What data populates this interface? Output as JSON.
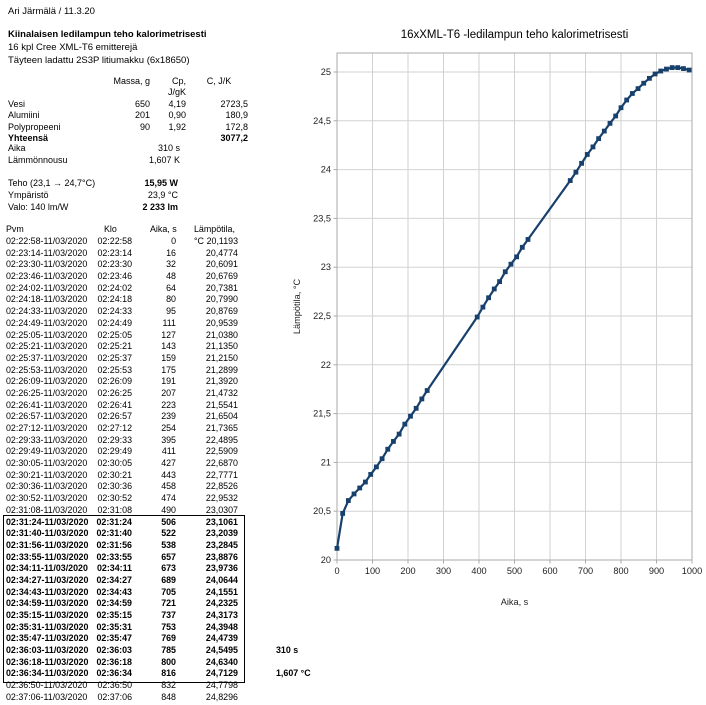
{
  "header": {
    "author_line": "Ari Järmälä / 11.3.20",
    "title": "Kiinalaisen ledilampun teho kalorimetrisesti",
    "subtitle1": "16 kpl Cree XML-T6 emitterejä",
    "subtitle2": "Täyteen ladattu 2S3P litiumakku (6x18650)"
  },
  "materials": {
    "col_headers": [
      "Massa, g",
      "Cp, J/gK",
      "C, J/K"
    ],
    "rows": [
      [
        "Vesi",
        "650",
        "4,19",
        "2723,5"
      ],
      [
        "Alumiini",
        "201",
        "0,90",
        "180,9"
      ],
      [
        "Polypropeeni",
        "90",
        "1,92",
        "172,8"
      ]
    ],
    "total_label": "Yhteensä",
    "total_value": "3077,2"
  },
  "stats": {
    "aika_label": "Aika",
    "aika_value": "310 s",
    "rise_label": "Lämmönnousu",
    "rise_value": "1,607 K",
    "teho_label": "Teho (23,1 → 24,7°C)",
    "teho_value": "15,95 W",
    "ymparisto_label": "Ympäristö",
    "ymparisto_value": "23,9 °C",
    "valo_label": "Valo: 140 lm/W",
    "valo_value": "2 233 lm"
  },
  "table": {
    "headers": [
      "Pvm",
      "Klo",
      "Aika, s",
      "Lämpötila, °C"
    ],
    "rows": [
      [
        "02:22:58-11/03/2020",
        "02:22:58",
        "0",
        "20,1193",
        0,
        ""
      ],
      [
        "02:23:14-11/03/2020",
        "02:23:14",
        "16",
        "20,4774",
        0,
        ""
      ],
      [
        "02:23:30-11/03/2020",
        "02:23:30",
        "32",
        "20,6091",
        0,
        ""
      ],
      [
        "02:23:46-11/03/2020",
        "02:23:46",
        "48",
        "20,6769",
        0,
        ""
      ],
      [
        "02:24:02-11/03/2020",
        "02:24:02",
        "64",
        "20,7381",
        0,
        ""
      ],
      [
        "02:24:18-11/03/2020",
        "02:24:18",
        "80",
        "20,7990",
        0,
        ""
      ],
      [
        "02:24:33-11/03/2020",
        "02:24:33",
        "95",
        "20,8769",
        0,
        ""
      ],
      [
        "02:24:49-11/03/2020",
        "02:24:49",
        "111",
        "20,9539",
        0,
        ""
      ],
      [
        "02:25:05-11/03/2020",
        "02:25:05",
        "127",
        "21,0380",
        0,
        ""
      ],
      [
        "02:25:21-11/03/2020",
        "02:25:21",
        "143",
        "21,1350",
        0,
        ""
      ],
      [
        "02:25:37-11/03/2020",
        "02:25:37",
        "159",
        "21,2150",
        0,
        ""
      ],
      [
        "02:25:53-11/03/2020",
        "02:25:53",
        "175",
        "21,2899",
        0,
        ""
      ],
      [
        "02:26:09-11/03/2020",
        "02:26:09",
        "191",
        "21,3920",
        0,
        ""
      ],
      [
        "02:26:25-11/03/2020",
        "02:26:25",
        "207",
        "21,4732",
        0,
        ""
      ],
      [
        "02:26:41-11/03/2020",
        "02:26:41",
        "223",
        "21,5541",
        0,
        ""
      ],
      [
        "02:26:57-11/03/2020",
        "02:26:57",
        "239",
        "21,6504",
        0,
        ""
      ],
      [
        "02:27:12-11/03/2020",
        "02:27:12",
        "254",
        "21,7365",
        0,
        ""
      ],
      [
        "02:29:33-11/03/2020",
        "02:29:33",
        "395",
        "22,4895",
        0,
        ""
      ],
      [
        "02:29:49-11/03/2020",
        "02:29:49",
        "411",
        "22,5909",
        0,
        ""
      ],
      [
        "02:30:05-11/03/2020",
        "02:30:05",
        "427",
        "22,6870",
        0,
        ""
      ],
      [
        "02:30:21-11/03/2020",
        "02:30:21",
        "443",
        "22,7771",
        0,
        ""
      ],
      [
        "02:30:36-11/03/2020",
        "02:30:36",
        "458",
        "22,8526",
        0,
        ""
      ],
      [
        "02:30:52-11/03/2020",
        "02:30:52",
        "474",
        "22,9532",
        0,
        ""
      ],
      [
        "02:31:08-11/03/2020",
        "02:31:08",
        "490",
        "23,0307",
        0,
        ""
      ],
      [
        "02:31:24-11/03/2020",
        "02:31:24",
        "506",
        "23,1061",
        1,
        ""
      ],
      [
        "02:31:40-11/03/2020",
        "02:31:40",
        "522",
        "23,2039",
        1,
        ""
      ],
      [
        "02:31:56-11/03/2020",
        "02:31:56",
        "538",
        "23,2845",
        1,
        ""
      ],
      [
        "02:33:55-11/03/2020",
        "02:33:55",
        "657",
        "23,8876",
        1,
        ""
      ],
      [
        "02:34:11-11/03/2020",
        "02:34:11",
        "673",
        "23,9736",
        1,
        ""
      ],
      [
        "02:34:27-11/03/2020",
        "02:34:27",
        "689",
        "24,0644",
        1,
        ""
      ],
      [
        "02:34:43-11/03/2020",
        "02:34:43",
        "705",
        "24,1551",
        1,
        ""
      ],
      [
        "02:34:59-11/03/2020",
        "02:34:59",
        "721",
        "24,2325",
        1,
        ""
      ],
      [
        "02:35:15-11/03/2020",
        "02:35:15",
        "737",
        "24,3173",
        1,
        ""
      ],
      [
        "02:35:31-11/03/2020",
        "02:35:31",
        "753",
        "24,3948",
        1,
        ""
      ],
      [
        "02:35:47-11/03/2020",
        "02:35:47",
        "769",
        "24,4739",
        1,
        ""
      ],
      [
        "02:36:03-11/03/2020",
        "02:36:03",
        "785",
        "24,5495",
        1,
        "310 s"
      ],
      [
        "02:36:18-11/03/2020",
        "02:36:18",
        "800",
        "24,6340",
        1,
        ""
      ],
      [
        "02:36:34-11/03/2020",
        "02:36:34",
        "816",
        "24,7129",
        1,
        "1,607 °C"
      ],
      [
        "02:36:50-11/03/2020",
        "02:36:50",
        "832",
        "24,7798",
        0,
        ""
      ],
      [
        "02:37:06-11/03/2020",
        "02:37:06",
        "848",
        "24,8296",
        0,
        ""
      ]
    ]
  },
  "chart_data": {
    "type": "line",
    "title": "16xXML-T6 -ledilampun teho kalorimetrisesti",
    "xlabel": "Aika, s",
    "ylabel": "Lämpötila, °C",
    "xlim": [
      0,
      1000
    ],
    "ylim": [
      20,
      25
    ],
    "grid": true,
    "legend": "none",
    "marker": "square",
    "line_color": "#17406d",
    "grid_color": "#d2d2d2",
    "frame_color": "#aaaaaa",
    "x_tick_values": [
      0,
      100,
      200,
      300,
      400,
      500,
      600,
      700,
      800,
      900,
      1000
    ],
    "x_tick_labels": [
      "0",
      "100",
      "200",
      "300",
      "400",
      "500",
      "600",
      "700",
      "800",
      "900",
      "1000"
    ],
    "y_tick_values": [
      20,
      20.5,
      21,
      21.5,
      22,
      22.5,
      23,
      23.5,
      24,
      24.5,
      25
    ],
    "y_tick_labels": [
      "20",
      "20,5",
      "21",
      "21,5",
      "22",
      "22,5",
      "23",
      "23,5",
      "24",
      "24,5",
      "25"
    ],
    "series": [
      {
        "name": "Lämpötila, °C",
        "points": [
          [
            0,
            20.1193
          ],
          [
            16,
            20.4774
          ],
          [
            32,
            20.6091
          ],
          [
            48,
            20.6769
          ],
          [
            64,
            20.7381
          ],
          [
            80,
            20.799
          ],
          [
            95,
            20.8769
          ],
          [
            111,
            20.9539
          ],
          [
            127,
            21.038
          ],
          [
            143,
            21.135
          ],
          [
            159,
            21.215
          ],
          [
            175,
            21.2899
          ],
          [
            191,
            21.392
          ],
          [
            207,
            21.4732
          ],
          [
            223,
            21.5541
          ],
          [
            239,
            21.6504
          ],
          [
            254,
            21.7365
          ],
          [
            395,
            22.4895
          ],
          [
            411,
            22.5909
          ],
          [
            427,
            22.687
          ],
          [
            443,
            22.7771
          ],
          [
            458,
            22.8526
          ],
          [
            474,
            22.9532
          ],
          [
            490,
            23.0307
          ],
          [
            506,
            23.1061
          ],
          [
            522,
            23.2039
          ],
          [
            538,
            23.2845
          ],
          [
            657,
            23.8876
          ],
          [
            673,
            23.9736
          ],
          [
            689,
            24.0644
          ],
          [
            705,
            24.1551
          ],
          [
            721,
            24.2325
          ],
          [
            737,
            24.3173
          ],
          [
            753,
            24.3948
          ],
          [
            769,
            24.4739
          ],
          [
            785,
            24.5495
          ],
          [
            800,
            24.634
          ],
          [
            816,
            24.7129
          ],
          [
            832,
            24.7798
          ],
          [
            848,
            24.8296
          ],
          [
            864,
            24.885
          ],
          [
            880,
            24.935
          ],
          [
            896,
            24.98
          ],
          [
            912,
            25.01
          ],
          [
            928,
            25.03
          ],
          [
            944,
            25.045
          ],
          [
            960,
            25.045
          ],
          [
            976,
            25.035
          ],
          [
            992,
            25.02
          ]
        ]
      }
    ]
  }
}
